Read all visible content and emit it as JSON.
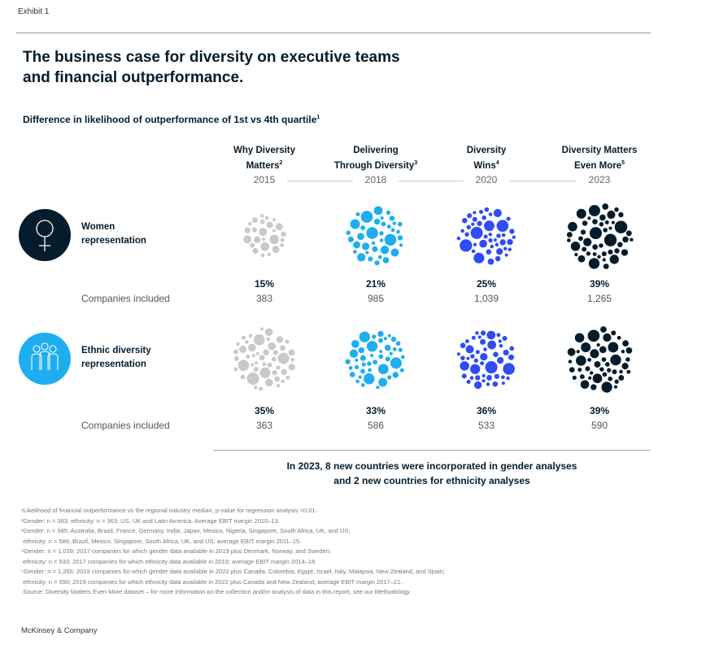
{
  "exhibit": "Exhibit 1",
  "title": [
    "The business case for diversity on executive teams",
    "and financial outperformance."
  ],
  "subtitle": "Difference in likelihood of outperformance of 1st vs 4th quartile",
  "subtitle_sup": "1",
  "columns": [
    {
      "line1": "Why Diversity",
      "line2": "Matters",
      "sup": "2",
      "year": "2015"
    },
    {
      "line1": "Delivering",
      "line2": "Through Diversity",
      "sup": "3",
      "year": "2018"
    },
    {
      "line1": "Diversity",
      "line2": "Wins",
      "sup": "4",
      "year": "2020"
    },
    {
      "line1": "Diversity Matters",
      "line2": "Even More",
      "sup": "5",
      "year": "2023"
    }
  ],
  "companies_label": "Companies included",
  "rows": [
    {
      "label1": "Women",
      "label2": "representation",
      "icon": "female-symbol-icon",
      "icon_color": "#051c2c",
      "pcts": [
        "15%",
        "21%",
        "25%",
        "39%"
      ],
      "counts": [
        "383",
        "985",
        "1,039",
        "1,265"
      ]
    },
    {
      "label1": "Ethnic diversity",
      "label2": "representation",
      "icon": "people-group-icon",
      "icon_color": "#1eaef0",
      "pcts": [
        "35%",
        "33%",
        "36%",
        "39%"
      ],
      "counts": [
        "363",
        "586",
        "533",
        "590"
      ]
    }
  ],
  "colors": [
    "#c9c9c9",
    "#1eaef0",
    "#2f4cf5",
    "#051c2c"
  ],
  "chart_data": {
    "type": "bubble-cluster",
    "categories": [
      "2015",
      "2018",
      "2020",
      "2023"
    ],
    "series": [
      {
        "name": "Women representation",
        "values": [
          15,
          21,
          25,
          39
        ]
      },
      {
        "name": "Ethnic diversity representation",
        "values": [
          35,
          33,
          36,
          39
        ]
      }
    ],
    "unit": "%"
  },
  "note": [
    "In 2023, 8 new countries were incorporated in gender analyses",
    "and 2 new countries for ethnicity analyses"
  ],
  "footnotes": [
    "¹Likelihood of financial outperformance vs the regional industry median, p-value for regression analysis <0.01.",
    "²Gender: n = 383; ethnicity: n = 363; US, UK and Latin America. Average EBIT margin 2010–13.",
    "³Gender: n = 985; Australia, Brazil, France, Germany, India, Japan, Mexico, Nigeria, Singapore, South Africa, UK, and US;",
    " ethnicity: n = 586; Brazil, Mexico, Singapore, South Africa, UK, and US; average EBIT margin 2011–15.",
    "⁴Gender: n = 1,039; 2017 companies for which gender data available in 2019 plus Denmark, Norway, and Sweden;",
    " ethnicity: n = 533; 2017 companies for which ethnicity data available in 2019; average EBIT margin 2014–18.",
    "⁵Gender: n = 1,265; 2019 companies for which gender data available in 2022 plus Canada, Colombia, Egypt, Israel, Italy, Malaysia, New Zealand, and Spain;",
    " ethnicity: n = 590; 2019 companies for which ethnicity data available in 2022 plus Canada and New Zealand; average EBIT margin 2017–21.",
    " Source: Diversity Matters Even More dataset – for more information on the collection and/or analysis of data in this report, see our Methodology"
  ],
  "brand": "McKinsey & Company"
}
